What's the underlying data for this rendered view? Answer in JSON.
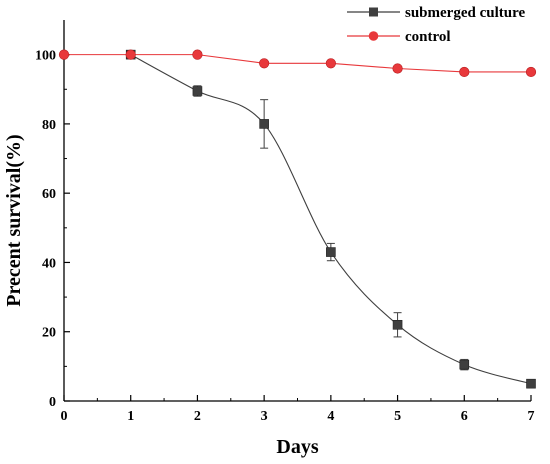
{
  "chart_data": {
    "type": "line",
    "title": "",
    "xlabel": "Days",
    "ylabel": "Precent survival(%)",
    "xlim": [
      0,
      7
    ],
    "ylim": [
      0,
      110
    ],
    "x_ticks": [
      0,
      1,
      2,
      3,
      4,
      5,
      6,
      7
    ],
    "y_ticks": [
      0,
      20,
      40,
      60,
      80,
      100
    ],
    "grid": false,
    "legend_position": "top-right",
    "series": [
      {
        "name": "submerged culture",
        "color": "#3f3f3f",
        "marker": "square",
        "x": [
          1,
          2,
          3,
          4,
          5,
          6,
          7
        ],
        "values": [
          100,
          89.5,
          80,
          43,
          22,
          10.5,
          5
        ],
        "error": [
          0,
          1.5,
          7,
          2.5,
          3.5,
          1.5,
          0
        ]
      },
      {
        "name": "control",
        "color": "#e8383b",
        "marker": "circle",
        "x": [
          0,
          1,
          2,
          3,
          4,
          5,
          6,
          7
        ],
        "values": [
          100,
          100,
          100,
          97.5,
          97.5,
          96,
          95,
          95
        ],
        "error": [
          0,
          0,
          0,
          0,
          0,
          0,
          0,
          0
        ]
      }
    ]
  }
}
